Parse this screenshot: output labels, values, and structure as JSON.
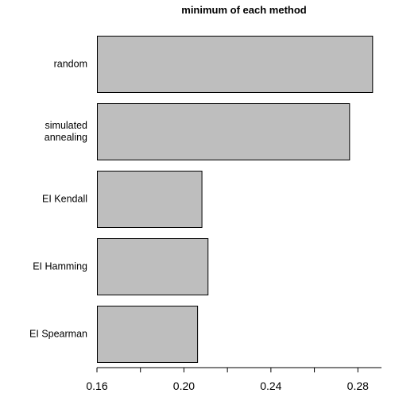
{
  "chart_data": {
    "type": "bar",
    "orientation": "horizontal",
    "title": "minimum of each method",
    "xlabel": "",
    "ylabel": "",
    "categories": [
      "random",
      "simulated\nannealing",
      "EI Kendall",
      "EI Hamming",
      "EI Spearman"
    ],
    "values": [
      0.2866,
      0.276,
      0.2081,
      0.2109,
      0.2061
    ],
    "xlim": [
      0.16,
      0.3
    ],
    "xticks": [
      0.16,
      0.18,
      0.2,
      0.22,
      0.24,
      0.26,
      0.28,
      0.3
    ],
    "xtick_labels": [
      "0.16",
      "",
      "0.20",
      "",
      "0.24",
      "",
      "0.28",
      ""
    ],
    "grid": false,
    "bar_color": "#bebebe"
  }
}
